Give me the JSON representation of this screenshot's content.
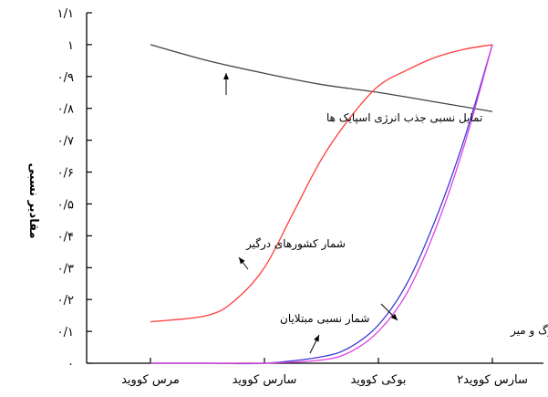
{
  "chart_data": {
    "type": "line",
    "title": "",
    "xlabel": "",
    "ylabel": "مقادیر نسبی",
    "x_categories": [
      "مرس کووید",
      "سارس کووید",
      "بوکی کووید",
      "سارس کووید۲"
    ],
    "ylim": [
      0,
      1.1
    ],
    "yticks": [
      {
        "v": 0,
        "label": "۰"
      },
      {
        "v": 0.1,
        "label": "۰/۱"
      },
      {
        "v": 0.2,
        "label": "۰/۲"
      },
      {
        "v": 0.3,
        "label": "۰/۳"
      },
      {
        "v": 0.4,
        "label": "۰/۴"
      },
      {
        "v": 0.5,
        "label": "۰/۵"
      },
      {
        "v": 0.6,
        "label": "۰/۶"
      },
      {
        "v": 0.7,
        "label": "۰/۷"
      },
      {
        "v": 0.8,
        "label": "۰/۸"
      },
      {
        "v": 0.9,
        "label": "۰/۹"
      },
      {
        "v": 1.0,
        "label": "۱"
      },
      {
        "v": 1.1,
        "label": "۱/۱"
      }
    ],
    "grid": false,
    "series": [
      {
        "key": "energy",
        "color": "#444444",
        "x": [
          0,
          0.5,
          1,
          1.5,
          2,
          2.5,
          3
        ],
        "values": [
          1.0,
          0.95,
          0.91,
          0.875,
          0.85,
          0.82,
          0.79
        ]
      },
      {
        "key": "countries",
        "color": "#ff3b3b",
        "x": [
          0,
          0.5,
          0.75,
          1,
          1.25,
          1.5,
          1.75,
          2,
          2.25,
          2.5,
          2.75,
          3
        ],
        "values": [
          0.13,
          0.15,
          0.2,
          0.3,
          0.47,
          0.64,
          0.77,
          0.87,
          0.92,
          0.96,
          0.985,
          1.0
        ]
      },
      {
        "key": "infected",
        "color": "#3b3bd8",
        "x": [
          0,
          0.5,
          1,
          1.5,
          1.75,
          2,
          2.25,
          2.5,
          2.75,
          3
        ],
        "values": [
          0,
          0,
          0,
          0.02,
          0.05,
          0.12,
          0.25,
          0.45,
          0.7,
          1.0
        ]
      },
      {
        "key": "deaths",
        "color": "#e040e0",
        "x": [
          0,
          0.5,
          1,
          1.5,
          1.75,
          2,
          2.25,
          2.5,
          2.75,
          3
        ],
        "values": [
          0,
          0,
          0,
          0.01,
          0.035,
          0.1,
          0.22,
          0.42,
          0.68,
          1.0
        ]
      }
    ],
    "annotations": [
      {
        "key": "energy",
        "text": "تمایل نسبی جذب انرژی اسپایک ها"
      },
      {
        "key": "countries",
        "text": "شمار کشورهای درگیر"
      },
      {
        "key": "infected",
        "text": "شمار نسبی مبتلایان"
      },
      {
        "key": "deaths",
        "text": "شمار نسبی مرگ و میر"
      }
    ]
  }
}
